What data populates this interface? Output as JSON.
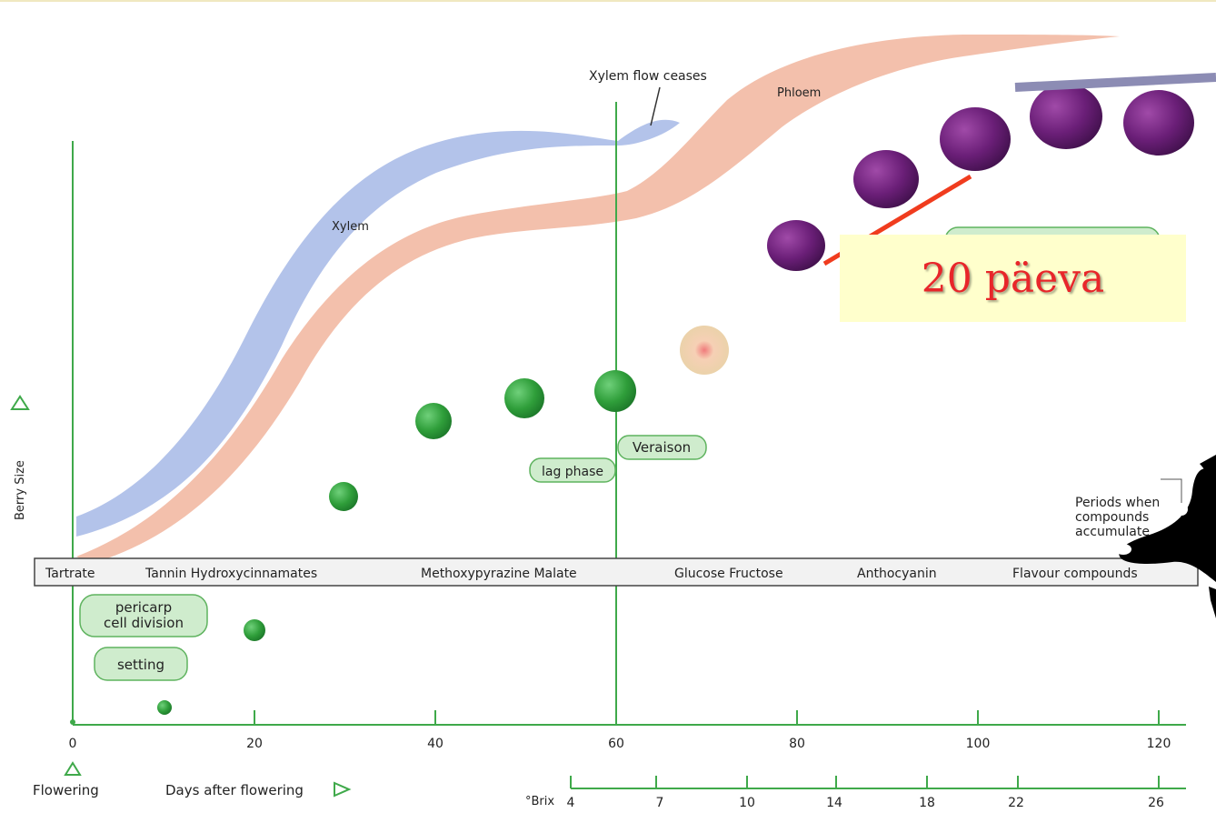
{
  "flows": {
    "xylem_label": "Xylem",
    "phloem_label": "Phloem",
    "xylem_ceases_label": "Xylem flow ceases"
  },
  "stages": {
    "pericarp_line1": "pericarp",
    "pericarp_line2": "cell division",
    "setting": "setting",
    "lag_phase": "lag phase",
    "veraison": "Veraison"
  },
  "compounds": [
    "Tartrate",
    "Tannin Hydroxycinnamates",
    "Methoxypyrazine Malate",
    "Glucose Fructose",
    "Anthocyanin",
    "Flavour compounds"
  ],
  "periods_label": [
    "Periods when",
    "compounds",
    "accumulate"
  ],
  "axes": {
    "y_label": "Berry Size",
    "x_ticks": [
      "0",
      "20",
      "40",
      "60",
      "80",
      "100",
      "120"
    ],
    "flowering_label": "Flowering",
    "days_label": "Days after flowering",
    "brix_label": "°Brix",
    "brix_ticks": [
      "4",
      "7",
      "10",
      "14",
      "18",
      "22",
      "26"
    ]
  },
  "callout": "20 päeva",
  "colors": {
    "xylem": "#b3c3ea",
    "phloem": "#f3c0ac",
    "green_line": "#3fa94a",
    "green_berry": "#2f9e3a",
    "purple_berry": "#6b1f78",
    "stage_fill": "#cfeccd",
    "stage_stroke": "#5fb35f",
    "callout_bg": "#ffffcc",
    "callout_text": "#e8262a",
    "pointer": "#f03c1e",
    "bar": "#8c8cb4"
  }
}
